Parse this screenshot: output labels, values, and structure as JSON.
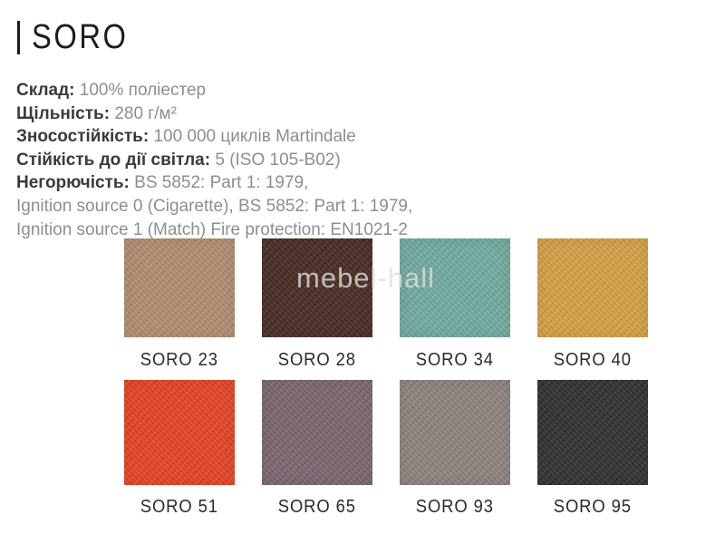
{
  "header": {
    "title": "SORO"
  },
  "watermark": {
    "text": "mebel-hall",
    "color": "#dedede"
  },
  "specs": {
    "lines": [
      {
        "label": "Склад:",
        "value": "100% поліестер"
      },
      {
        "label": "Щільність:",
        "value": "280 г/м²"
      },
      {
        "label": "Зносостійкість:",
        "value": "100 000 циклів Martindale"
      },
      {
        "label": "Стійкість до дії світла:",
        "value": "5 (ISO 105-B02)"
      },
      {
        "label": "Негорючість:",
        "value": "BS 5852: Part 1: 1979,"
      },
      {
        "label": "",
        "value": "Ignition source 0 (Cigarette), BS 5852: Part 1: 1979,"
      },
      {
        "label": "",
        "value": "Ignition source 1 (Match) Fire protection: EN1021-2"
      }
    ]
  },
  "swatches": {
    "items": [
      {
        "name": "SORO 23",
        "color": "#b28f74"
      },
      {
        "name": "SORO 28",
        "color": "#4b2d26"
      },
      {
        "name": "SORO 34",
        "color": "#74aca1"
      },
      {
        "name": "SORO 40",
        "color": "#d7a147"
      },
      {
        "name": "SORO 51",
        "color": "#e74527"
      },
      {
        "name": "SORO 65",
        "color": "#7d6872"
      },
      {
        "name": "SORO 93",
        "color": "#8f8480"
      },
      {
        "name": "SORO 95",
        "color": "#333336"
      }
    ]
  }
}
